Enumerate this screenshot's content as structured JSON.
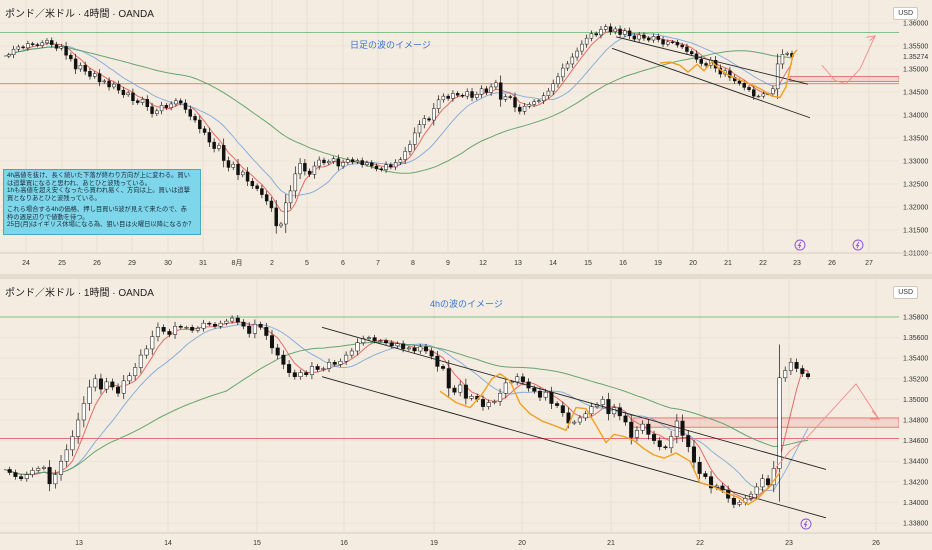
{
  "chart_data": [
    {
      "type": "candlestick",
      "title": "ポンド／米ドル · 4時間 · OANDA",
      "annotation": "日足の波のイメージ",
      "currency": "USD",
      "price_tag": "1.35274",
      "y_ticks": [
        "1.36000",
        "1.35500",
        "1.35000",
        "1.34500",
        "1.34000",
        "1.33500",
        "1.33000",
        "1.32500",
        "1.32000",
        "1.31500",
        "1.31000"
      ],
      "y_range": [
        1.31,
        1.3608
      ],
      "x_ticks": [
        "24",
        "25",
        "26",
        "29",
        "30",
        "31",
        "8月",
        "2",
        "5",
        "6",
        "7",
        "8",
        "9",
        "12",
        "13",
        "14",
        "15",
        "16",
        "19",
        "20",
        "21",
        "22",
        "23",
        "26",
        "27"
      ],
      "horizontal_levels": [
        1.3579,
        1.3468
      ],
      "resistance_zone": [
        1.3473,
        1.3484
      ],
      "note_lines": [
        "4h高値を抜け、長く続いた下落が終わり方向が上に変わる。買い",
        "は追撃買になると思われ、あとひと波残っている。",
        "1hも高値を超え安くなったら買われ易く、方向は上。買いは追撃",
        "買となりあとひと波残っている。",
        "",
        "これら場合する4hの価格、押し目買い5波が見えて来たので、赤",
        "枠の週足辺りで値動を待つ。",
        "25日(月)はイギリス休場になる為、狙い目は火曜日以降になるか？"
      ],
      "close_series": [
        1.3528,
        1.3531,
        1.3543,
        1.3548,
        1.3546,
        1.3555,
        1.3553,
        1.3551,
        1.3557,
        1.3562,
        1.3553,
        1.3545,
        1.3549,
        1.353,
        1.3522,
        1.35,
        1.3508,
        1.3495,
        1.3484,
        1.349,
        1.3472,
        1.3474,
        1.3461,
        1.3467,
        1.3454,
        1.3444,
        1.3448,
        1.3431,
        1.3427,
        1.3434,
        1.3418,
        1.3403,
        1.3409,
        1.3421,
        1.3416,
        1.3424,
        1.3431,
        1.3426,
        1.3412,
        1.3397,
        1.3389,
        1.337,
        1.3362,
        1.3341,
        1.3327,
        1.3334,
        1.3301,
        1.3286,
        1.3293,
        1.327,
        1.3276,
        1.3256,
        1.3246,
        1.324,
        1.3227,
        1.3213,
        1.3198,
        1.3159,
        1.3163,
        1.3209,
        1.3235,
        1.3272,
        1.3295,
        1.3278,
        1.3271,
        1.3289,
        1.3302,
        1.3296,
        1.3299,
        1.3305,
        1.3289,
        1.3297,
        1.3303,
        1.3298,
        1.3301,
        1.3292,
        1.3296,
        1.3289,
        1.3283,
        1.3281,
        1.3292,
        1.3287,
        1.3297,
        1.3303,
        1.3321,
        1.3336,
        1.3361,
        1.3379,
        1.3392,
        1.3389,
        1.3414,
        1.3433,
        1.3441,
        1.3436,
        1.3447,
        1.3443,
        1.3441,
        1.3451,
        1.3438,
        1.3445,
        1.3457,
        1.3449,
        1.3461,
        1.347,
        1.3434,
        1.344,
        1.3438,
        1.3417,
        1.3408,
        1.3419,
        1.3423,
        1.3429,
        1.3431,
        1.3442,
        1.3452,
        1.3468,
        1.3483,
        1.3502,
        1.3511,
        1.3526,
        1.3539,
        1.3554,
        1.3567,
        1.3577,
        1.3574,
        1.3586,
        1.3592,
        1.3581,
        1.3587,
        1.3575,
        1.3583,
        1.3572,
        1.3565,
        1.3574,
        1.3567,
        1.3563,
        1.3571,
        1.3564,
        1.3554,
        1.3559,
        1.3558,
        1.3552,
        1.3548,
        1.3538,
        1.3533,
        1.3521,
        1.3512,
        1.3508,
        1.3519,
        1.3502,
        1.3489,
        1.3496,
        1.3482,
        1.3474,
        1.3469,
        1.346,
        1.3455,
        1.3441,
        1.3441,
        1.3446,
        1.3446,
        1.3457,
        1.3511,
        1.3532,
        1.3534,
        1.3527
      ],
      "indicators": {
        "lines": [
          {
            "name": "",
            "color": "#e05656"
          },
          {
            "name": "",
            "color": "#6b9edb"
          },
          {
            "name": "",
            "color": "#4c9a5a"
          }
        ]
      }
    },
    {
      "type": "candlestick",
      "title": "ポンド／米ドル · 1時間 · OANDA",
      "annotation": "4hの波のイメージ",
      "currency": "USD",
      "y_ticks": [
        "1.35800",
        "1.35600",
        "1.35400",
        "1.35200",
        "1.35000",
        "1.34800",
        "1.34600",
        "1.34400",
        "1.34200",
        "1.34000",
        "1.33800"
      ],
      "y_range": [
        1.3378,
        1.3586
      ],
      "x_ticks": [
        "13",
        "14",
        "15",
        "16",
        "19",
        "20",
        "21",
        "22",
        "23",
        "26"
      ],
      "horizontal_levels": [
        1.358,
        1.3462
      ],
      "resistance_zone": [
        1.3473,
        1.3482
      ],
      "close_series": [
        1.3432,
        1.3429,
        1.3425,
        1.3423,
        1.3427,
        1.3431,
        1.3433,
        1.3434,
        1.3418,
        1.3427,
        1.344,
        1.3451,
        1.3464,
        1.348,
        1.3496,
        1.3512,
        1.352,
        1.351,
        1.3517,
        1.3512,
        1.3506,
        1.3518,
        1.3523,
        1.3531,
        1.3543,
        1.3549,
        1.3561,
        1.357,
        1.3566,
        1.3563,
        1.3571,
        1.357,
        1.357,
        1.3567,
        1.3569,
        1.3574,
        1.3573,
        1.3571,
        1.3574,
        1.3576,
        1.3579,
        1.3575,
        1.3571,
        1.3564,
        1.3573,
        1.357,
        1.3562,
        1.355,
        1.3543,
        1.3534,
        1.3526,
        1.3522,
        1.3526,
        1.3524,
        1.3532,
        1.3529,
        1.353,
        1.3536,
        1.3534,
        1.3537,
        1.3543,
        1.3547,
        1.3555,
        1.3559,
        1.356,
        1.3557,
        1.3557,
        1.3555,
        1.3552,
        1.3554,
        1.3549,
        1.355,
        1.3547,
        1.3551,
        1.3547,
        1.3542,
        1.3532,
        1.353,
        1.3511,
        1.3507,
        1.3514,
        1.3501,
        1.3503,
        1.35,
        1.3493,
        1.3497,
        1.3498,
        1.3506,
        1.3516,
        1.3517,
        1.3522,
        1.3517,
        1.3511,
        1.3508,
        1.3502,
        1.3507,
        1.3496,
        1.3494,
        1.3487,
        1.3477,
        1.3478,
        1.3482,
        1.3486,
        1.3493,
        1.3495,
        1.35,
        1.3486,
        1.3492,
        1.3484,
        1.3478,
        1.3463,
        1.347,
        1.3476,
        1.3466,
        1.346,
        1.3454,
        1.3453,
        1.3464,
        1.3479,
        1.3465,
        1.3454,
        1.3439,
        1.3428,
        1.3425,
        1.3414,
        1.3416,
        1.3412,
        1.3404,
        1.3398,
        1.34,
        1.3404,
        1.3408,
        1.3415,
        1.3423,
        1.3417,
        1.3433,
        1.3521,
        1.3528,
        1.3536,
        1.353,
        1.3525,
        1.3522
      ],
      "indicators": {
        "lines": [
          {
            "name": "",
            "color": "#e05656"
          },
          {
            "name": "",
            "color": "#6b9edb"
          },
          {
            "name": "",
            "color": "#4c9a5a"
          }
        ]
      }
    }
  ]
}
